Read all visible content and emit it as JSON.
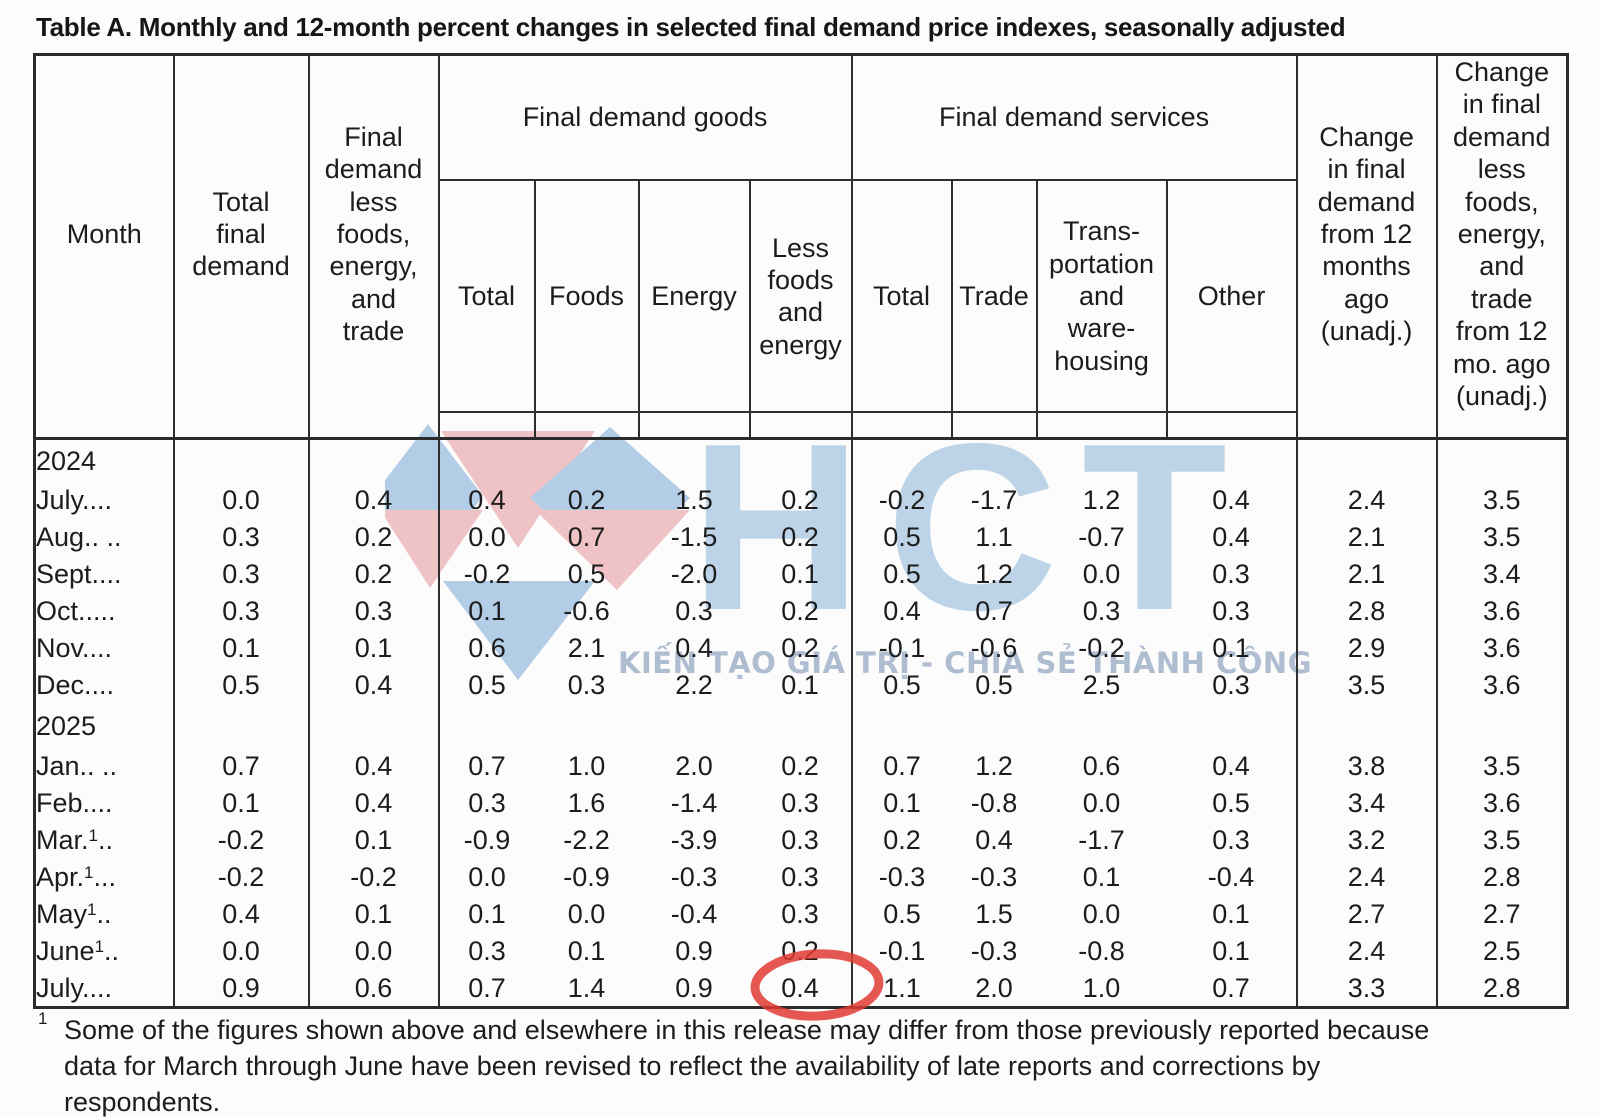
{
  "title": "Table A. Monthly and 12-month percent changes in selected final demand price indexes, seasonally adjusted",
  "header": {
    "month": "Month",
    "total_final_demand": "Total\nfinal\ndemand",
    "fd_less_fet": "Final\ndemand\nless\nfoods,\nenergy,\nand\ntrade",
    "goods_group": "Final demand goods",
    "services_group": "Final demand services",
    "goods_cols": [
      "Total",
      "Foods",
      "Energy",
      "Less\nfoods\nand\nenergy"
    ],
    "services_cols": [
      "Total",
      "Trade",
      "Trans-\nportation\nand\nware-\nhousing",
      "Other"
    ],
    "chg_12mo": "Change\nin final\ndemand\nfrom 12\nmonths\nago\n(unadj.)",
    "chg_less_12mo": "Change\nin final\ndemand\nless\nfoods,\nenergy,\nand\ntrade\nfrom 12\nmo. ago\n(unadj.)"
  },
  "rows": [
    {
      "type": "year",
      "label": "2024"
    },
    {
      "type": "data",
      "m": "July",
      "sup": "",
      "d": "....",
      "values": [
        "0.0",
        "0.4",
        "0.4",
        "0.2",
        "1.5",
        "0.2",
        "-0.2",
        "-1.7",
        "1.2",
        "0.4",
        "2.4",
        "3.5"
      ]
    },
    {
      "type": "data",
      "m": "Aug",
      "sup": "",
      "d": ".. ..",
      "values": [
        "0.3",
        "0.2",
        "0.0",
        "0.7",
        "-1.5",
        "0.2",
        "0.5",
        "1.1",
        "-0.7",
        "0.4",
        "2.1",
        "3.5"
      ]
    },
    {
      "type": "data",
      "m": "Sept",
      "sup": "",
      "d": "....",
      "values": [
        "0.3",
        "0.2",
        "-0.2",
        "0.5",
        "-2.0",
        "0.1",
        "0.5",
        "1.2",
        "0.0",
        "0.3",
        "2.1",
        "3.4"
      ]
    },
    {
      "type": "data",
      "m": "Oct",
      "sup": "",
      "d": ".....",
      "values": [
        "0.3",
        "0.3",
        "0.1",
        "-0.6",
        "0.3",
        "0.2",
        "0.4",
        "0.7",
        "0.3",
        "0.3",
        "2.8",
        "3.6"
      ]
    },
    {
      "type": "data",
      "m": "Nov",
      "sup": "",
      "d": "....",
      "values": [
        "0.1",
        "0.1",
        "0.6",
        "2.1",
        "0.4",
        "0.2",
        "-0.1",
        "-0.6",
        "-0.2",
        "0.1",
        "2.9",
        "3.6"
      ]
    },
    {
      "type": "data",
      "m": "Dec",
      "sup": "",
      "d": "....",
      "values": [
        "0.5",
        "0.4",
        "0.5",
        "0.3",
        "2.2",
        "0.1",
        "0.5",
        "0.5",
        "2.5",
        "0.3",
        "3.5",
        "3.6"
      ]
    },
    {
      "type": "year",
      "label": "2025"
    },
    {
      "type": "data",
      "m": "Jan",
      "sup": "",
      "d": ".. ..",
      "values": [
        "0.7",
        "0.4",
        "0.7",
        "1.0",
        "2.0",
        "0.2",
        "0.7",
        "1.2",
        "0.6",
        "0.4",
        "3.8",
        "3.5"
      ]
    },
    {
      "type": "data",
      "m": "Feb",
      "sup": "",
      "d": "....",
      "values": [
        "0.1",
        "0.4",
        "0.3",
        "1.6",
        "-1.4",
        "0.3",
        "0.1",
        "-0.8",
        "0.0",
        "0.5",
        "3.4",
        "3.6"
      ]
    },
    {
      "type": "data",
      "m": "Mar.",
      "sup": "1",
      "d": "..",
      "values": [
        "-0.2",
        "0.1",
        "-0.9",
        "-2.2",
        "-3.9",
        "0.3",
        "0.2",
        "0.4",
        "-1.7",
        "0.3",
        "3.2",
        "3.5"
      ]
    },
    {
      "type": "data",
      "m": "Apr.",
      "sup": "1",
      "d": "...",
      "values": [
        "-0.2",
        "-0.2",
        "0.0",
        "-0.9",
        "-0.3",
        "0.3",
        "-0.3",
        "-0.3",
        "0.1",
        "-0.4",
        "2.4",
        "2.8"
      ]
    },
    {
      "type": "data",
      "m": "May",
      "sup": "1",
      "d": "..",
      "values": [
        "0.4",
        "0.1",
        "0.1",
        "0.0",
        "-0.4",
        "0.3",
        "0.5",
        "1.5",
        "0.0",
        "0.1",
        "2.7",
        "2.7"
      ]
    },
    {
      "type": "data",
      "m": "June",
      "sup": "1",
      "d": "..",
      "values": [
        "0.0",
        "0.0",
        "0.3",
        "0.1",
        "0.9",
        "0.2",
        "-0.1",
        "-0.3",
        "-0.8",
        "0.1",
        "2.4",
        "2.5"
      ]
    },
    {
      "type": "data",
      "m": "July",
      "sup": "",
      "d": "....",
      "values": [
        "0.9",
        "0.6",
        "0.7",
        "1.4",
        "0.9",
        "0.4",
        "1.1",
        "2.0",
        "1.0",
        "0.7",
        "3.3",
        "2.8"
      ],
      "circled": 5
    }
  ],
  "footnote": {
    "marker": "1",
    "text": "Some of the figures shown above and elsewhere in this release may differ from those previously reported because\ndata for March through June have been revised to reflect the availability of late reports and corrections by\nrespondents."
  },
  "watermark": {
    "logo_text": "HCT",
    "tagline": "KIẾN TẠO GIÁ TRỊ - CHIA SẺ THÀNH CÔNG",
    "blue": "#b3cde6",
    "pink": "#efc3c6",
    "text_blue": "#bdd4e8",
    "tagline_color": "#aebdd0"
  },
  "annotation": {
    "circled_value": "0.4",
    "circled_row": "July 2025",
    "circled_column": "Less foods and energy",
    "circle_color": "#e03a32"
  }
}
